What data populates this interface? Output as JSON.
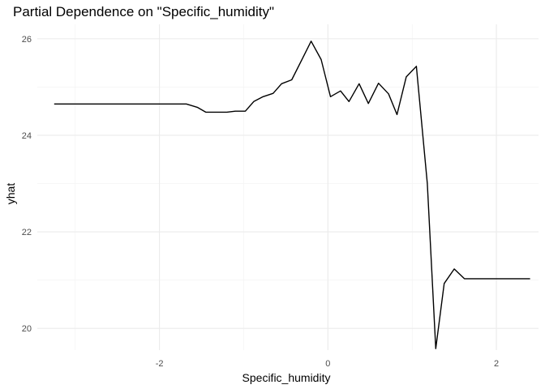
{
  "chart_data": {
    "type": "line",
    "title": "Partial Dependence on \"Specific_humidity\"",
    "xlabel": "Specific_humidity",
    "ylabel": "yhat",
    "xlim": [
      -3.45,
      2.5
    ],
    "ylim": [
      19.55,
      26.3
    ],
    "x_ticks": [
      -2,
      0,
      2
    ],
    "y_ticks": [
      20,
      22,
      24,
      26
    ],
    "x_tick_labels": [
      "-2",
      "0",
      "2"
    ],
    "y_tick_labels": [
      "20",
      "22",
      "24",
      "26"
    ],
    "grid": true,
    "legend": "none",
    "series": [
      {
        "color": "#000000",
        "x": [
          -3.25,
          -1.68,
          -1.55,
          -1.45,
          -1.2,
          -1.1,
          -0.98,
          -0.88,
          -0.77,
          -0.65,
          -0.55,
          -0.43,
          -0.3,
          -0.2,
          -0.08,
          0.03,
          0.15,
          0.25,
          0.37,
          0.48,
          0.6,
          0.72,
          0.82,
          0.93,
          1.05,
          1.18,
          1.28,
          1.38,
          1.5,
          1.62,
          2.4
        ],
        "y": [
          24.65,
          24.65,
          24.58,
          24.48,
          24.48,
          24.5,
          24.5,
          24.7,
          24.8,
          24.87,
          25.07,
          25.15,
          25.6,
          25.95,
          25.57,
          24.8,
          24.92,
          24.7,
          25.07,
          24.66,
          25.08,
          24.86,
          24.43,
          25.21,
          25.43,
          23.0,
          19.58,
          20.93,
          21.23,
          21.03,
          21.03
        ]
      }
    ]
  }
}
